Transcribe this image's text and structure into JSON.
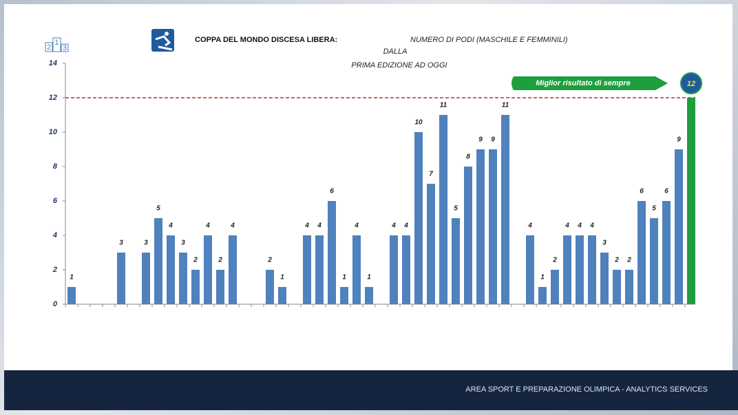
{
  "footer": "AREA SPORT E PREPARAZIONE OLIMPICA - ANALYTICS SERVICES",
  "podium_icon": [
    "2",
    "1",
    "3"
  ],
  "chart_data": {
    "type": "bar",
    "title": "COPPA DEL MONDO DISCESA LIBERA:",
    "subtitle": "NUMERO  DI PODI (MASCHILE E FEMMINILI)",
    "subtitle_line2": "DALLA",
    "subtitle_line3": "PRIMA EDIZIONE AD OGGI",
    "annotation": "Miglior risultato di sempre",
    "values": [
      1,
      null,
      null,
      null,
      3,
      null,
      3,
      5,
      4,
      3,
      2,
      4,
      2,
      4,
      null,
      null,
      2,
      1,
      null,
      4,
      4,
      6,
      1,
      4,
      1,
      null,
      4,
      4,
      10,
      7,
      11,
      5,
      8,
      9,
      9,
      11,
      null,
      4,
      1,
      2,
      4,
      4,
      4,
      3,
      2,
      2,
      6,
      5,
      6,
      9,
      12
    ],
    "colors": [
      "#4f81bd",
      "#4f81bd",
      "#4f81bd",
      "#4f81bd",
      "#4f81bd",
      "#4f81bd",
      "#4f81bd",
      "#4f81bd",
      "#4f81bd",
      "#4f81bd",
      "#4f81bd",
      "#4f81bd",
      "#4f81bd",
      "#4f81bd",
      "#4f81bd",
      "#4f81bd",
      "#4f81bd",
      "#4f81bd",
      "#4f81bd",
      "#4f81bd",
      "#4f81bd",
      "#4f81bd",
      "#4f81bd",
      "#4f81bd",
      "#4f81bd",
      "#4f81bd",
      "#4f81bd",
      "#4f81bd",
      "#4f81bd",
      "#4f81bd",
      "#4f81bd",
      "#4f81bd",
      "#4f81bd",
      "#4f81bd",
      "#4f81bd",
      "#4f81bd",
      "#4f81bd",
      "#4f81bd",
      "#4f81bd",
      "#4f81bd",
      "#4f81bd",
      "#4f81bd",
      "#4f81bd",
      "#4f81bd",
      "#4f81bd",
      "#4f81bd",
      "#4f81bd",
      "#4f81bd",
      "#4f81bd",
      "#4f81bd",
      "#1e9e3e"
    ],
    "ylim": [
      0,
      14
    ],
    "yticks": [
      0,
      2,
      4,
      6,
      8,
      10,
      12,
      14
    ],
    "reference_line": {
      "value": 12,
      "color": "#e02020"
    }
  }
}
